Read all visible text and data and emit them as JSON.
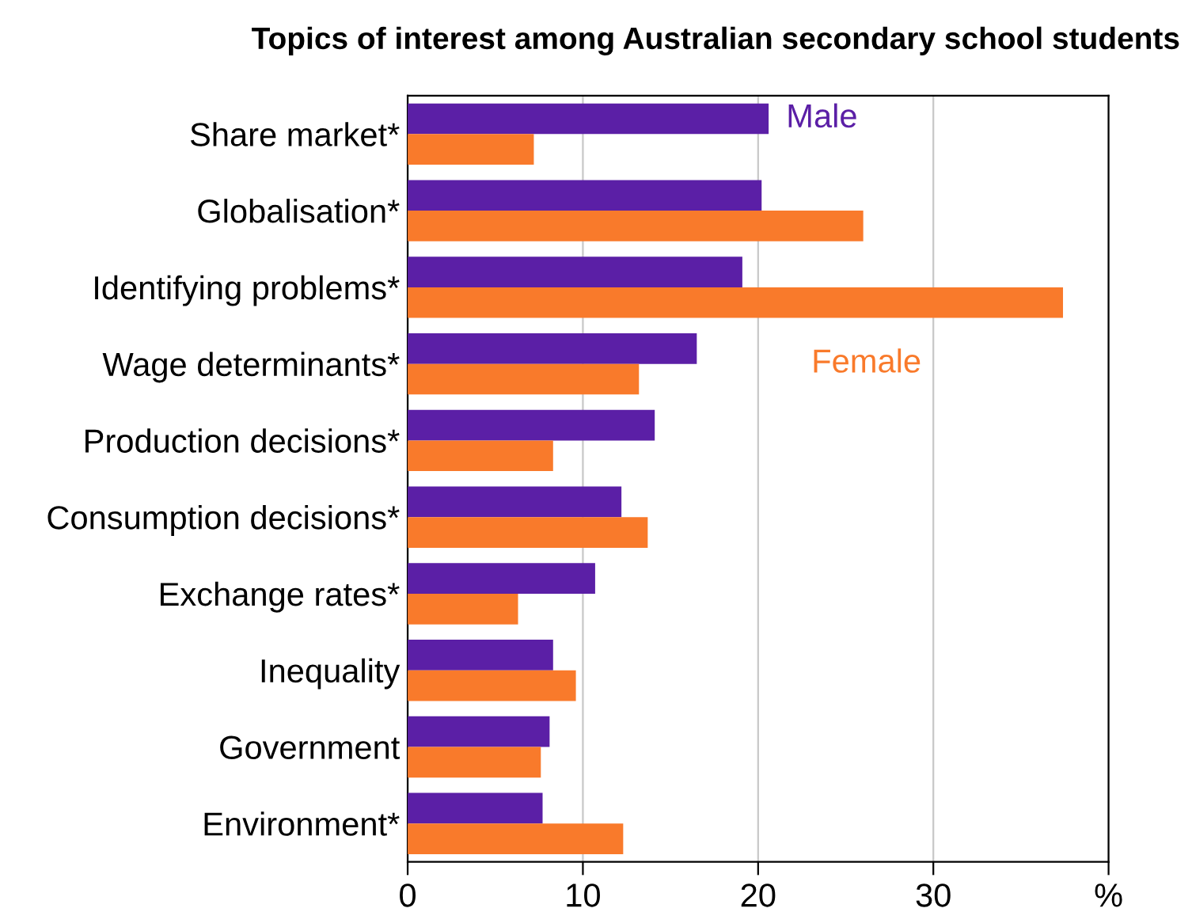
{
  "chart_data": {
    "type": "bar",
    "orientation": "horizontal",
    "title": "Topics of interest among Australian secondary school students",
    "categories": [
      "Share market*",
      "Globalisation*",
      "Identifying problems*",
      "Wage determinants*",
      "Production decisions*",
      "Consumption decisions*",
      "Exchange rates*",
      "Inequality",
      "Government",
      "Environment*"
    ],
    "series": [
      {
        "name": "Male",
        "color": "#5b1fa6",
        "values": [
          20.6,
          20.2,
          19.1,
          16.5,
          14.1,
          12.2,
          10.7,
          8.3,
          8.1,
          7.7
        ]
      },
      {
        "name": "Female",
        "color": "#f97a2b",
        "values": [
          7.2,
          26.0,
          37.4,
          13.2,
          8.3,
          13.7,
          6.3,
          9.6,
          7.6,
          12.3
        ]
      }
    ],
    "xlim": [
      0,
      40
    ],
    "xticks": [
      0,
      10,
      20,
      30,
      {
        "value": 40,
        "label": "%"
      }
    ],
    "grid": "x",
    "legend": false
  }
}
